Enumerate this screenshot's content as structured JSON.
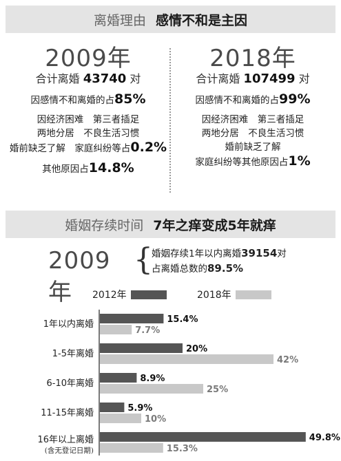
{
  "banner1": {
    "tag": "离婚理由",
    "headline": "感情不和是主因"
  },
  "col2009": {
    "year": "2009年",
    "total_prefix": "合计离婚",
    "total_value": "43740",
    "total_suffix": "对",
    "emotion_text": "因感情不和离婚的占",
    "emotion_value": "85%",
    "reasons_line1": "因经济困难　第三者插足",
    "reasons_line2": "两地分居　不良生活习惯",
    "reasons_line3": "婚前缺乏了解　家庭纠纷等占",
    "reasons_value": "0.2%",
    "other_text": "其他原因占",
    "other_value": "14.8%"
  },
  "col2018": {
    "year": "2018年",
    "total_prefix": "合计离婚",
    "total_value": "107499",
    "total_suffix": "对",
    "emotion_text": "因感情不和离婚的占",
    "emotion_value": "99%",
    "reasons_line1": "因经济困难　第三者插足",
    "reasons_line2": "两地分居　不良生活习惯",
    "reasons_line3": "婚前缺乏了解",
    "reasons_line4": "家庭纠纷等其他原因占",
    "reasons_value": "1%"
  },
  "banner2": {
    "tag": "婚姻存续时间",
    "headline": "7年之痒变成5年就痒"
  },
  "summary2009": {
    "year": "2009年",
    "line1_prefix": "婚姻存续1年以内离婚",
    "line1_value": "39154",
    "line1_suffix": "对",
    "line2_prefix": "占离婚总数的",
    "line2_value": "89.5%"
  },
  "colors": {
    "series2012": "#555555",
    "series2018": "#c8c8c8",
    "banner": "#e4e4e4"
  },
  "chart_data": {
    "type": "bar",
    "orientation": "horizontal",
    "categories": [
      "1年以内离婚",
      "1-5年离婚",
      "6-10年离婚",
      "11-15年离婚",
      "16年以上离婚"
    ],
    "category_notes": [
      "",
      "",
      "",
      "",
      "(含无登记日期)"
    ],
    "series": [
      {
        "name": "2012年",
        "values": [
          15.4,
          20,
          8.9,
          5.9,
          49.8
        ],
        "labels": [
          "15.4%",
          "20%",
          "8.9%",
          "5.9%",
          "49.8%"
        ]
      },
      {
        "name": "2018年",
        "values": [
          7.7,
          42,
          25,
          10,
          15.3
        ],
        "labels": [
          "7.7%",
          "42%",
          "25%",
          "10%",
          "15.3%"
        ]
      }
    ],
    "xlim": [
      0,
      50
    ],
    "legend_position": "top",
    "grid": false
  }
}
